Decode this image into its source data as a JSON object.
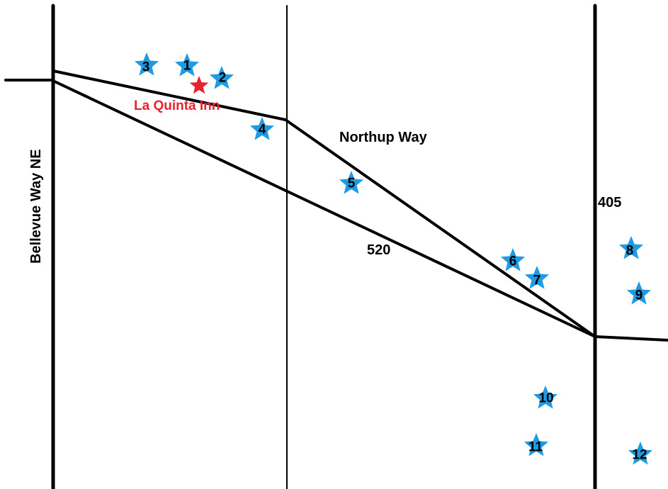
{
  "colors": {
    "background": "#ffffff",
    "road": "#000000",
    "marker": "#1e9be3",
    "hotel": "#e8222e",
    "label": "#000000"
  },
  "roads": {
    "bellevue": {
      "name": "Bellevue Way NE"
    },
    "northup": {
      "name": "Northup Way"
    },
    "sr520": {
      "name": "520"
    },
    "i405": {
      "name": "405"
    },
    "middle": {
      "name": ""
    }
  },
  "hotel": {
    "name": "La Quinta Inn",
    "icon": "red-star-icon"
  },
  "markers": [
    {
      "id": "1",
      "icon": "blue-star-icon"
    },
    {
      "id": "2",
      "icon": "blue-star-icon"
    },
    {
      "id": "3",
      "icon": "blue-star-icon"
    },
    {
      "id": "4",
      "icon": "blue-star-icon"
    },
    {
      "id": "5",
      "icon": "blue-star-icon"
    },
    {
      "id": "6",
      "icon": "blue-star-icon"
    },
    {
      "id": "7",
      "icon": "blue-star-icon"
    },
    {
      "id": "8",
      "icon": "blue-star-icon"
    },
    {
      "id": "9",
      "icon": "blue-star-icon"
    },
    {
      "id": "10",
      "icon": "blue-star-icon"
    },
    {
      "id": "11",
      "icon": "blue-star-icon"
    },
    {
      "id": "12",
      "icon": "blue-star-icon"
    }
  ]
}
